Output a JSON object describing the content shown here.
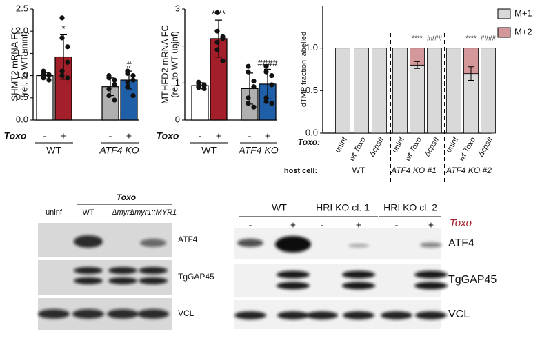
{
  "chart_data": [
    {
      "type": "bar",
      "ylabel": [
        "SHMT2 mRNA FC",
        "(rel. to WT uninf)"
      ],
      "xlabel": "Toxo",
      "categories": [
        "-",
        "+",
        "-",
        "+"
      ],
      "groups": [
        "WT",
        "ATF4 KO"
      ],
      "colors": [
        "#ffffff",
        "#a3202a",
        "#b0b0b0",
        "#1f5fa8"
      ],
      "values": [
        1.0,
        1.42,
        0.75,
        0.9
      ],
      "errors": [
        0.07,
        0.5,
        0.2,
        0.2
      ],
      "points": [
        [
          0.9,
          0.95,
          1.0,
          1.0,
          1.02,
          1.05,
          1.1
        ],
        [
          0.95,
          1.0,
          1.1,
          1.3,
          1.65,
          1.85,
          2.3
        ],
        [
          0.45,
          0.55,
          0.7,
          0.8,
          0.9,
          0.95,
          1.0
        ],
        [
          0.55,
          0.75,
          0.85,
          0.9,
          1.0,
          1.05,
          1.1
        ]
      ],
      "annotations": [
        null,
        "*",
        null,
        "#"
      ],
      "ylim": [
        0,
        2.5
      ],
      "yticks": [
        {
          "value": 0,
          "label": "0.0"
        },
        0.5,
        {
          "value": 1,
          "label": "1.0"
        },
        1.5,
        {
          "value": 2,
          "label": "2.0"
        },
        2.5
      ]
    },
    {
      "type": "bar",
      "ylabel": [
        "MTHFD2 mRNA FC",
        "(rel. to WT uninf)"
      ],
      "xlabel": "Toxo",
      "categories": [
        "-",
        "+",
        "-",
        "+"
      ],
      "groups": [
        "WT",
        "ATF4 KO"
      ],
      "colors": [
        "#ffffff",
        "#a3202a",
        "#b0b0b0",
        "#1f5fa8"
      ],
      "values": [
        0.93,
        2.2,
        0.85,
        0.97
      ],
      "errors": [
        0.08,
        0.5,
        0.42,
        0.4
      ],
      "points": [
        [
          0.85,
          0.88,
          0.9,
          0.93,
          0.95,
          0.98,
          1.02
        ],
        [
          1.6,
          1.9,
          2.1,
          2.2,
          2.25,
          2.4,
          2.9
        ],
        [
          0.35,
          0.45,
          0.6,
          0.9,
          1.05,
          1.3,
          1.45
        ],
        [
          0.45,
          0.5,
          0.6,
          0.95,
          1.2,
          1.3,
          1.45
        ]
      ],
      "annotations": [
        null,
        "****",
        null,
        "####"
      ],
      "ylim": [
        0,
        3
      ],
      "yticks": [
        0,
        1,
        2,
        3
      ]
    },
    {
      "type": "stacked_bar",
      "ylabel": "dTMP fraction labelled",
      "xlabel": "Toxo:",
      "group_label": "host cell:",
      "categories": [
        "uninf",
        "wt Toxo",
        "ΔcpsII",
        "uninf",
        "wt Toxo",
        "ΔcpsII",
        "uninf",
        "wt Toxo",
        "ΔcpsII"
      ],
      "groups": [
        "WT",
        "ATF4 KO #1",
        "ATF4 KO #2"
      ],
      "series": [
        {
          "name": "M+1",
          "color": "#d9d9d9",
          "values": [
            1,
            1,
            1,
            1,
            0.8,
            1,
            1,
            0.7,
            1
          ]
        },
        {
          "name": "M+2",
          "color": "#d4989a",
          "values": [
            0,
            0,
            0,
            0,
            0.2,
            0,
            0,
            0.3,
            0
          ],
          "errors": [
            null,
            null,
            null,
            null,
            0.04,
            null,
            null,
            0.08,
            null
          ]
        }
      ],
      "annotations": [
        null,
        null,
        null,
        null,
        "****",
        "####",
        null,
        "****",
        "####"
      ],
      "legend": "upper right",
      "ylim": [
        0,
        1.5
      ],
      "yticks": [
        {
          "value": 0,
          "label": "0.0"
        },
        0.5,
        {
          "value": 1,
          "label": "1.0"
        }
      ]
    }
  ],
  "blots": [
    {
      "title": "Toxo",
      "lanes": [
        "uninf",
        "WT",
        "Δmyr1",
        "Δmyr1::MYR1"
      ],
      "rows": [
        "ATF4",
        "TgGAP45",
        "VCL"
      ]
    },
    {
      "groups": [
        "WT",
        "HRI KO cl. 1",
        "HRI KO cl. 2"
      ],
      "lanes": [
        "-",
        "+",
        "-",
        "+",
        "-",
        "+"
      ],
      "condition": "Toxo",
      "rows": [
        "ATF4",
        "TgGAP45",
        "VCL"
      ]
    }
  ]
}
